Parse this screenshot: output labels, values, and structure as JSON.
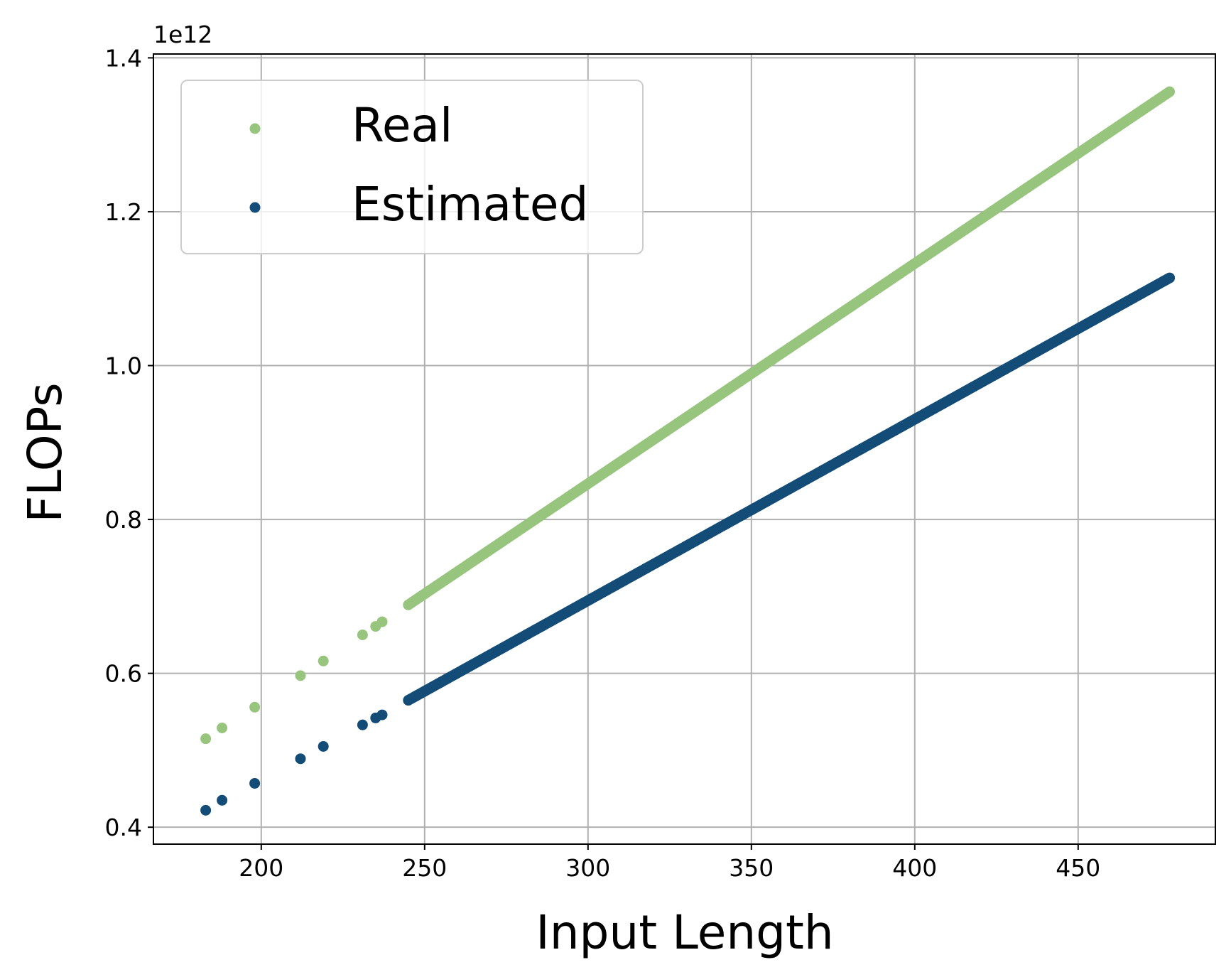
{
  "chart_data": {
    "type": "scatter",
    "xlabel": "Input Length",
    "ylabel": "FLOPs",
    "y_offset_label": "1e12",
    "y_scale_factor": 1000000000000.0,
    "xlim": [
      167,
      492
    ],
    "ylim": [
      0.378,
      1.405
    ],
    "x_ticks": [
      200,
      250,
      300,
      350,
      400,
      450
    ],
    "y_ticks": [
      0.4,
      0.6,
      0.8,
      1.0,
      1.2,
      1.4
    ],
    "x_tick_labels": [
      "200",
      "250",
      "300",
      "350",
      "400",
      "450"
    ],
    "y_tick_labels": [
      "0.4",
      "0.6",
      "0.8",
      "1.0",
      "1.2",
      "1.4"
    ],
    "grid": true,
    "legend_position": "upper-left",
    "series": [
      {
        "name": "Real",
        "color": "#98c57e",
        "points": [
          [
            183,
            0.515
          ],
          [
            188,
            0.529
          ],
          [
            198,
            0.556
          ],
          [
            212,
            0.597
          ],
          [
            219,
            0.616
          ],
          [
            231,
            0.65
          ],
          [
            235,
            0.661
          ],
          [
            237,
            0.667
          ],
          [
            245,
            0.689
          ],
          [
            478,
            1.356
          ]
        ]
      },
      {
        "name": "Estimated",
        "color": "#134c77",
        "points": [
          [
            183,
            0.422
          ],
          [
            188,
            0.435
          ],
          [
            198,
            0.457
          ],
          [
            212,
            0.489
          ],
          [
            219,
            0.505
          ],
          [
            231,
            0.533
          ],
          [
            235,
            0.542
          ],
          [
            237,
            0.546
          ],
          [
            245,
            0.565
          ],
          [
            478,
            1.114
          ]
        ]
      }
    ]
  }
}
